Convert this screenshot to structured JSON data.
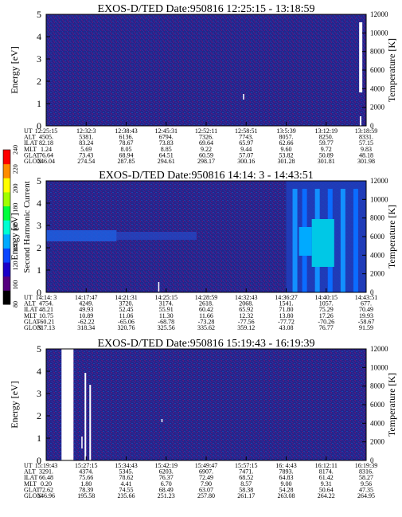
{
  "figure": {
    "colorbar": {
      "title": "Second Harmonic Current",
      "tick_labels": [
        "80",
        "100",
        "120",
        "140",
        "160",
        "180",
        "200",
        "220",
        "240"
      ],
      "colors": [
        "#000000",
        "#55007f",
        "#1a00c8",
        "#0a46ff",
        "#00aaff",
        "#00ffd2",
        "#00ff3c",
        "#a0ff00",
        "#ffff00",
        "#ff8c00",
        "#ff0000"
      ]
    },
    "rows": [
      {
        "label": "UT"
      },
      {
        "label": "ALT"
      },
      {
        "label": "ILAT"
      },
      {
        "label": "MLT"
      },
      {
        "label": "GLAT"
      },
      {
        "label": "GLON"
      }
    ]
  },
  "chart_data": [
    {
      "type": "heatmap",
      "title": "EXOS-D/TED   Date:950816   12:25:15 - 13:18:59",
      "ylabel": "Energy [eV]",
      "y2label": "Temperature [K]",
      "ylim": [
        0,
        5
      ],
      "y2lim": [
        0,
        12000
      ],
      "yticks": [
        "0",
        "1",
        "2",
        "3",
        "4",
        "5"
      ],
      "y2ticks": [
        "0",
        "2000",
        "4000",
        "6000",
        "8000",
        "10000",
        "12000"
      ],
      "ephemeris": [
        [
          "12:25:15",
          "12:32:3",
          "12:38:43",
          "12:45:31",
          "12:52:11",
          "12:58:51",
          "13:5:39",
          "13:12:19",
          "13:18:59"
        ],
        [
          "4505.",
          "5381.",
          "6136.",
          "6794.",
          "7326.",
          "7743.",
          "8057.",
          "8250.",
          "8331."
        ],
        [
          "82.18",
          "83.24",
          "78.67",
          "73.83",
          "69.64",
          "65.97",
          "62.66",
          "59.77",
          "57.15"
        ],
        [
          "1.24",
          "5.69",
          "8.05",
          "8.85",
          "9.22",
          "9.44",
          "9.60",
          "9.72",
          "9.83"
        ],
        [
          "76.64",
          "73.43",
          "68.94",
          "64.51",
          "60.59",
          "57.07",
          "53.82",
          "50.89",
          "48.18"
        ],
        [
          "246.04",
          "274.54",
          "287.85",
          "294.61",
          "298.17",
          "300.16",
          "301.28",
          "301.81",
          "301.98"
        ]
      ]
    },
    {
      "type": "heatmap",
      "title": "EXOS-D/TED   Date:950816   14:14: 3 - 14:43:51",
      "ylabel": "Energy [eV]",
      "y2label": "Temperature [K]",
      "ylim": [
        0,
        5
      ],
      "y2lim": [
        0,
        12000
      ],
      "yticks": [
        "0",
        "1",
        "2",
        "3",
        "4",
        "5"
      ],
      "y2ticks": [
        "0",
        "2000",
        "4000",
        "6000",
        "8000",
        "10000",
        "12000"
      ],
      "ephemeris": [
        [
          "14:14: 3",
          "14:17:47",
          "14:21:31",
          "14:25:15",
          "14:28:59",
          "14:32:43",
          "14:36:27",
          "14:40:15",
          "14:43:51"
        ],
        [
          "4754.",
          "4249.",
          "3720.",
          "3174.",
          "2618.",
          "2068.",
          "1541.",
          "1057.",
          "677."
        ],
        [
          "48.21",
          "49.93",
          "52.45",
          "55.91",
          "60.42",
          "65.92",
          "71.80",
          "75.29",
          "70.49"
        ],
        [
          "10.75",
          "10.89",
          "11.06",
          "11.30",
          "11.66",
          "12.32",
          "13.80",
          "17.26",
          "19.93"
        ],
        [
          "-60.21",
          "-62.22",
          "-65.06",
          "-68.78",
          "-73.28",
          "-77.56",
          "-77.72",
          "-70.26",
          "-58.67"
        ],
        [
          "317.13",
          "318.34",
          "320.76",
          "325.56",
          "335.62",
          "359.12",
          "43.08",
          "76.77",
          "91.59"
        ]
      ]
    },
    {
      "type": "heatmap",
      "title": "EXOS-D/TED   Date:950816   15:19:43 - 16:19:39",
      "ylabel": "Energy [eV]",
      "y2label": "Temperature [K]",
      "ylim": [
        0,
        5
      ],
      "y2lim": [
        0,
        12000
      ],
      "yticks": [
        "0",
        "1",
        "2",
        "3",
        "4",
        "5"
      ],
      "y2ticks": [
        "0",
        "2000",
        "4000",
        "6000",
        "8000",
        "10000",
        "12000"
      ],
      "ephemeris": [
        [
          "15:19:43",
          "15:27:15",
          "15:34:43",
          "15:42:19",
          "15:49:47",
          "15:57:15",
          "16: 4:43",
          "16:12:11",
          "16:19:39"
        ],
        [
          "3291.",
          "4374.",
          "5345.",
          "6203.",
          "6907.",
          "7471.",
          "7893.",
          "8174.",
          "8316."
        ],
        [
          "66.48",
          "75.66",
          "78.62",
          "76.37",
          "72.49",
          "68.52",
          "64.83",
          "61.42",
          "58.27"
        ],
        [
          "0.20",
          "1.80",
          "4.41",
          "6.70",
          "7.90",
          "8.57",
          "9.00",
          "9.31",
          "9.56"
        ],
        [
          "72.62",
          "78.39",
          "74.55",
          "68.49",
          "63.07",
          "58.38",
          "54.28",
          "50.64",
          "47.35"
        ],
        [
          "146.96",
          "195.58",
          "235.66",
          "251.23",
          "257.80",
          "261.17",
          "263.08",
          "264.22",
          "264.95"
        ]
      ]
    }
  ]
}
